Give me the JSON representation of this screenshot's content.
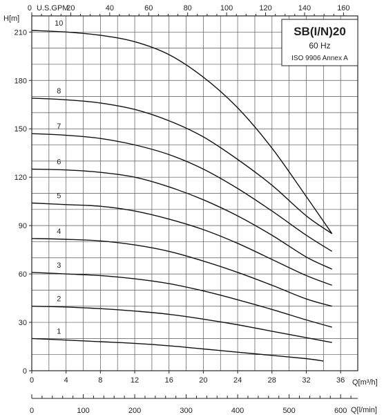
{
  "chart_data": {
    "type": "line",
    "title": "SB(I/N)20",
    "legend_lines": [
      "SB(I/N)20",
      "60 Hz",
      "ISO 9906 Annex A"
    ],
    "legend_placement": "top-right",
    "grid": true,
    "xlabel": "Q[m³/h]",
    "ylabel": "H[m]",
    "top_axis_label": "U.S.GPM",
    "bottom2_axis_label": "Q[l/min]",
    "xlim": [
      0,
      38
    ],
    "ylim": [
      0,
      220
    ],
    "x_ticks": [
      0,
      4,
      8,
      12,
      16,
      20,
      24,
      28,
      32,
      36
    ],
    "y_ticks": [
      0,
      30,
      60,
      90,
      120,
      150,
      180,
      210
    ],
    "gpm_ticks": [
      0,
      20,
      40,
      60,
      80,
      100,
      120,
      140,
      160
    ],
    "lpm_ticks": [
      0,
      100,
      200,
      300,
      400,
      500,
      600
    ],
    "series": [
      {
        "name": "1",
        "x": [
          0,
          4,
          8,
          12,
          16,
          20,
          24,
          28,
          32,
          34
        ],
        "y": [
          20,
          19,
          18,
          17,
          15.5,
          13.5,
          11.5,
          9.5,
          7.5,
          6
        ]
      },
      {
        "name": "2",
        "x": [
          0,
          4,
          8,
          12,
          16,
          20,
          24,
          28,
          32,
          35
        ],
        "y": [
          40,
          39.5,
          38.5,
          37,
          35,
          32,
          28.5,
          24.5,
          20.5,
          17.5
        ]
      },
      {
        "name": "3",
        "x": [
          0,
          4,
          8,
          12,
          16,
          20,
          24,
          28,
          32,
          35
        ],
        "y": [
          61,
          60,
          59,
          57,
          54,
          49.5,
          44,
          38,
          31.5,
          27
        ]
      },
      {
        "name": "4",
        "x": [
          0,
          4,
          8,
          12,
          16,
          20,
          24,
          28,
          32,
          35
        ],
        "y": [
          82,
          81.5,
          80.5,
          78,
          74,
          68,
          61,
          53,
          44.5,
          40
        ]
      },
      {
        "name": "5",
        "x": [
          0,
          4,
          8,
          12,
          16,
          20,
          24,
          28,
          32,
          35
        ],
        "y": [
          104,
          103,
          102,
          99,
          94,
          87.5,
          79,
          69,
          59,
          53
        ]
      },
      {
        "name": "6",
        "x": [
          0,
          4,
          8,
          12,
          16,
          20,
          24,
          28,
          32,
          35
        ],
        "y": [
          125,
          124.5,
          123,
          120,
          114,
          106,
          96,
          84,
          70.5,
          63
        ]
      },
      {
        "name": "7",
        "x": [
          0,
          4,
          8,
          12,
          16,
          20,
          24,
          28,
          32,
          35
        ],
        "y": [
          147,
          146,
          144,
          140,
          134,
          125,
          113,
          99,
          84,
          74
        ]
      },
      {
        "name": "8",
        "x": [
          0,
          4,
          8,
          12,
          16,
          20,
          24,
          28,
          32,
          35
        ],
        "y": [
          169,
          168,
          166,
          162,
          155,
          145,
          131,
          115,
          96,
          85
        ]
      },
      {
        "name": "10",
        "x": [
          0,
          4,
          8,
          12,
          16,
          20,
          24,
          28,
          32,
          35
        ],
        "y": [
          211,
          210,
          208,
          204,
          196,
          182,
          163,
          138,
          108,
          85
        ]
      }
    ]
  }
}
